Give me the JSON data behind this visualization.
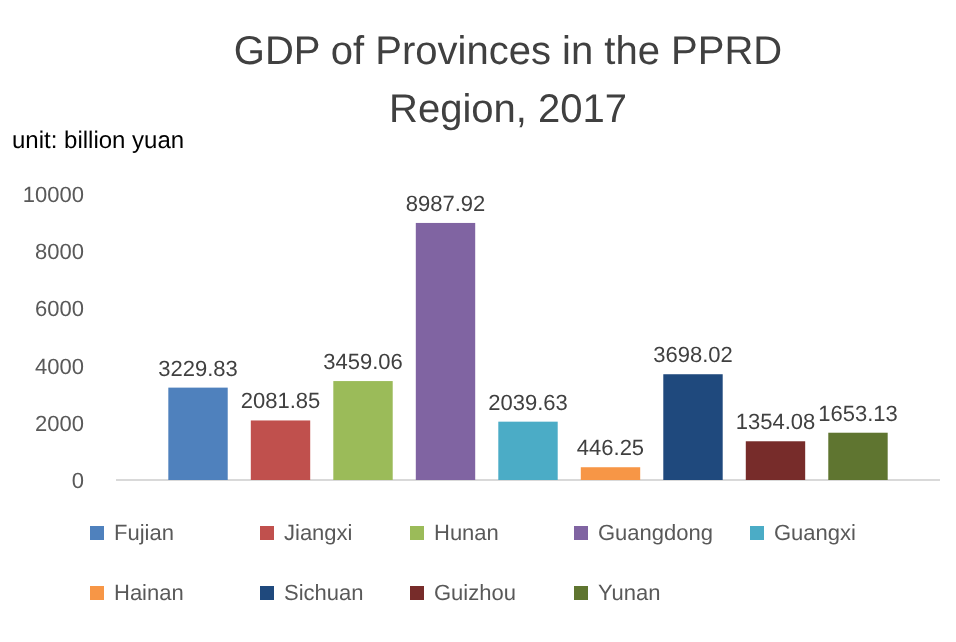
{
  "chart_data": {
    "type": "bar",
    "title": "GDP of Provinces in the PPRD\nRegion, 2017",
    "ylabel": "unit: billion yuan",
    "categories": [
      null
    ],
    "series": [
      {
        "name": "Fujian",
        "color": "#4f81bd",
        "values": [
          3229.83
        ]
      },
      {
        "name": "Jiangxi",
        "color": "#c0504d",
        "values": [
          2081.85
        ]
      },
      {
        "name": "Hunan",
        "color": "#9bbb59",
        "values": [
          3459.06
        ]
      },
      {
        "name": "Guangdong",
        "color": "#8064a2",
        "values": [
          8987.92
        ]
      },
      {
        "name": "Guangxi",
        "color": "#4bacc6",
        "values": [
          2039.63
        ]
      },
      {
        "name": "Hainan",
        "color": "#f79646",
        "values": [
          446.25
        ]
      },
      {
        "name": "Sichuan",
        "color": "#1f497d",
        "values": [
          3698.02
        ]
      },
      {
        "name": "Guizhou",
        "color": "#772c2a",
        "values": [
          1354.08
        ]
      },
      {
        "name": "Yunan",
        "color": "#5f7530",
        "values": [
          1653.13
        ]
      }
    ],
    "ylim": [
      0,
      10000
    ],
    "yticks": [
      0,
      2000,
      4000,
      6000,
      8000,
      10000
    ],
    "data_labels": true,
    "legend": "bottom",
    "tick_labels": "y"
  }
}
